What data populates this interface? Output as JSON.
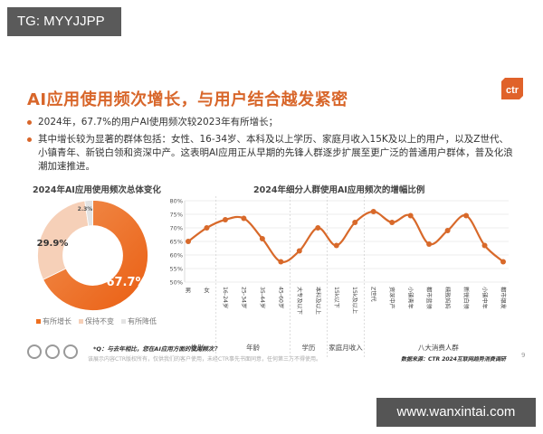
{
  "overlay": {
    "tg_label": "TG: MYYJJPP",
    "site_label": "www.wanxintai.com"
  },
  "slide": {
    "title": "AI应用使用频次增长，与用户结合越发紧密",
    "logo_text": "ctr",
    "bullets": [
      "2024年，67.7%的用户AI使用频次较2023年有所增长；",
      "其中增长较为显著的群体包括：女性、16-34岁、本科及以上学历、家庭月收入15K及以上的用户，以及Z世代、小镇青年、新锐白领和资深中产。这表明AI应用正从早期的先锋人群逐步扩展至更广泛的普通用户群体，普及化浪潮加速推进。"
    ],
    "footnote_q": "*Q：与去年相比，您在AI应用方面的使用频次？",
    "footnote_copyright": "该展示内容CTR版权所有，仅供我们的客户使用，未经CTR事先书面同意，任何第三方不得使用。",
    "source": "数据来源：CTR 2024互联网趋势消费调研",
    "page_number": "9"
  },
  "colors": {
    "accent": "#d8662a",
    "line": "#d8692a",
    "donut_increase": "#ee6f1f",
    "donut_same": "#f6d0b8",
    "donut_decrease": "#e3e3e3"
  },
  "chart_data": [
    {
      "type": "pie",
      "title": "2024年AI应用使用频次总体变化",
      "categories": [
        "有所增长",
        "保持不变",
        "有所降低"
      ],
      "values": [
        67.7,
        29.9,
        2.3
      ],
      "labels": [
        "67.7%",
        "29.9%",
        "2.3%"
      ],
      "donut": true,
      "legend_position": "bottom"
    },
    {
      "type": "line",
      "title": "2024年细分人群使用AI应用频次的增幅比例",
      "categories": [
        "男",
        "女",
        "16-24岁",
        "25-34岁",
        "35-44岁",
        "45-60岁",
        "大专及以下",
        "本科及以上",
        "15k以下",
        "15k及以上",
        "Z世代",
        "资深中产",
        "小镇青年",
        "都市蓝领",
        "精致妈妈",
        "新锐白领",
        "小镇中年",
        "都市银发"
      ],
      "groups": [
        {
          "name": "性别",
          "count": 2
        },
        {
          "name": "年龄",
          "count": 4
        },
        {
          "name": "学历",
          "count": 2
        },
        {
          "name": "家庭月收入",
          "count": 2
        },
        {
          "name": "八大消费人群",
          "count": 8
        }
      ],
      "series": [
        {
          "name": "增幅比例",
          "values": [
            65.0,
            70.0,
            73.0,
            73.5,
            66.0,
            57.5,
            61.5,
            70.0,
            63.5,
            72.0,
            76.0,
            72.0,
            74.5,
            64.0,
            69.0,
            74.5,
            63.5,
            57.5
          ]
        }
      ],
      "ylim": [
        50,
        80
      ],
      "yticks": [
        "50%",
        "55%",
        "60%",
        "65%",
        "70%",
        "75%",
        "80%"
      ],
      "grid": true,
      "xlabel": "",
      "ylabel": ""
    }
  ]
}
